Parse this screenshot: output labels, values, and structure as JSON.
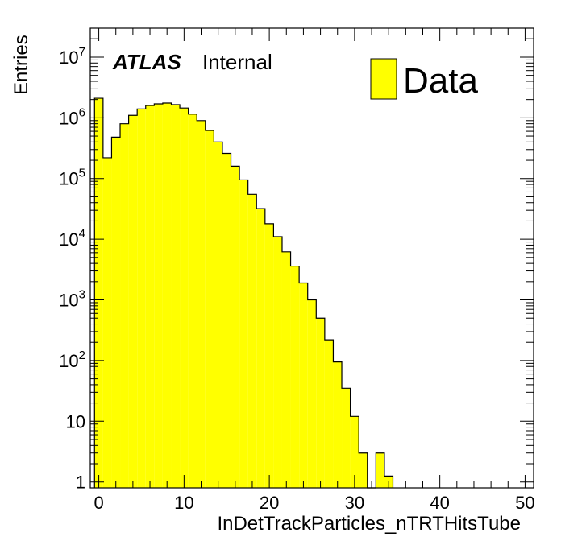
{
  "chart_data": {
    "type": "bar",
    "xlabel": "InDetTrackParticles_nTRTHitsTube",
    "ylabel": "Entries",
    "xlim": [
      -1,
      51
    ],
    "ylim": [
      0.8,
      30000000
    ],
    "yscale": "log",
    "x_ticks": [
      0,
      10,
      20,
      30,
      40,
      50
    ],
    "x_tick_labels": [
      "0",
      "10",
      "20",
      "30",
      "40",
      "50"
    ],
    "y_ticks": [
      1,
      10,
      100,
      1000,
      10000,
      100000,
      1000000,
      10000000
    ],
    "y_tick_labels": [
      {
        "base": "1",
        "exp": ""
      },
      {
        "base": "10",
        "exp": ""
      },
      {
        "base": "10",
        "exp": "2"
      },
      {
        "base": "10",
        "exp": "3"
      },
      {
        "base": "10",
        "exp": "4"
      },
      {
        "base": "10",
        "exp": "5"
      },
      {
        "base": "10",
        "exp": "6"
      },
      {
        "base": "10",
        "exp": "7"
      }
    ],
    "bin_width": 1,
    "series": [
      {
        "name": "Data",
        "bins": [
          {
            "x": 0,
            "y": 2100000
          },
          {
            "x": 1,
            "y": 220000
          },
          {
            "x": 2,
            "y": 480000
          },
          {
            "x": 3,
            "y": 800000
          },
          {
            "x": 4,
            "y": 1100000
          },
          {
            "x": 5,
            "y": 1400000
          },
          {
            "x": 6,
            "y": 1600000
          },
          {
            "x": 7,
            "y": 1700000
          },
          {
            "x": 8,
            "y": 1750000
          },
          {
            "x": 9,
            "y": 1650000
          },
          {
            "x": 10,
            "y": 1450000
          },
          {
            "x": 11,
            "y": 1150000
          },
          {
            "x": 12,
            "y": 900000
          },
          {
            "x": 13,
            "y": 620000
          },
          {
            "x": 14,
            "y": 400000
          },
          {
            "x": 15,
            "y": 260000
          },
          {
            "x": 16,
            "y": 160000
          },
          {
            "x": 17,
            "y": 95000
          },
          {
            "x": 18,
            "y": 55000
          },
          {
            "x": 19,
            "y": 32000
          },
          {
            "x": 20,
            "y": 18000
          },
          {
            "x": 21,
            "y": 11000
          },
          {
            "x": 22,
            "y": 6200
          },
          {
            "x": 23,
            "y": 3600
          },
          {
            "x": 24,
            "y": 1900
          },
          {
            "x": 25,
            "y": 1000
          },
          {
            "x": 26,
            "y": 500
          },
          {
            "x": 27,
            "y": 220
          },
          {
            "x": 28,
            "y": 95
          },
          {
            "x": 29,
            "y": 35
          },
          {
            "x": 30,
            "y": 12
          },
          {
            "x": 31,
            "y": 3
          },
          {
            "x": 32,
            "y": 0
          },
          {
            "x": 33,
            "y": 3
          },
          {
            "x": 34,
            "y": 1.25
          }
        ],
        "fill_color": "#ffff00",
        "line_color": "#000000"
      }
    ],
    "legend_position": "top-right",
    "annotations": {
      "atlas": "ATLAS",
      "status": "Internal"
    },
    "legend_label": "Data",
    "grid": false
  }
}
